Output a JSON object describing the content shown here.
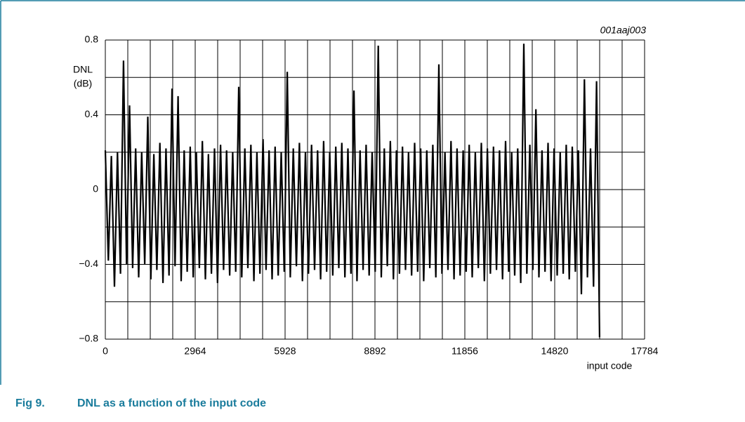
{
  "chart_data": {
    "type": "line",
    "annotation": "001aaj003",
    "ylabel": [
      "DNL",
      "(dB)"
    ],
    "xlabel": "input code",
    "figure_number": "Fig 9.",
    "title": "DNL as a function of the input code",
    "xlim": [
      0,
      17784
    ],
    "xticks": [
      0,
      2964,
      5928,
      8892,
      11856,
      14820,
      17784
    ],
    "xticks_minor": [
      741,
      1482,
      2223,
      3705,
      4446,
      5187,
      6669,
      7410,
      8151,
      9633,
      10374,
      11115,
      12597,
      13338,
      14079,
      15561,
      16302,
      17043
    ],
    "ylim": [
      -0.8,
      0.8
    ],
    "yticks": [
      {
        "value": -0.8,
        "label": "−0.8"
      },
      {
        "value": -0.4,
        "label": "−0.4"
      },
      0,
      0.4,
      0.8
    ],
    "yticks_minor": [
      -0.6,
      -0.2,
      0.2,
      0.6
    ],
    "grid": true,
    "series": [
      {
        "name": "DNL",
        "color": "#000000",
        "x": [
          0,
          100,
          200,
          300,
          400,
          500,
          600,
          700,
          800,
          900,
          1000,
          1100,
          1200,
          1300,
          1400,
          1500,
          1600,
          1700,
          1800,
          1900,
          2000,
          2100,
          2200,
          2300,
          2400,
          2500,
          2600,
          2700,
          2800,
          2900,
          3000,
          3100,
          3200,
          3300,
          3400,
          3500,
          3600,
          3700,
          3800,
          3900,
          4000,
          4100,
          4200,
          4300,
          4400,
          4500,
          4600,
          4700,
          4800,
          4900,
          5000,
          5100,
          5200,
          5300,
          5400,
          5500,
          5600,
          5700,
          5800,
          5900,
          6000,
          6100,
          6200,
          6300,
          6400,
          6500,
          6600,
          6700,
          6800,
          6900,
          7000,
          7100,
          7200,
          7300,
          7400,
          7500,
          7600,
          7700,
          7800,
          7900,
          8000,
          8100,
          8200,
          8300,
          8400,
          8500,
          8600,
          8700,
          8800,
          8900,
          9000,
          9100,
          9200,
          9300,
          9400,
          9500,
          9600,
          9700,
          9800,
          9900,
          10000,
          10100,
          10200,
          10300,
          10400,
          10500,
          10600,
          10700,
          10800,
          10900,
          11000,
          11100,
          11200,
          11300,
          11400,
          11500,
          11600,
          11700,
          11800,
          11900,
          12000,
          12100,
          12200,
          12300,
          12400,
          12500,
          12600,
          12700,
          12800,
          12900,
          13000,
          13100,
          13200,
          13300,
          13400,
          13500,
          13600,
          13700,
          13800,
          13900,
          14000,
          14100,
          14200,
          14300,
          14400,
          14500,
          14600,
          14700,
          14800,
          14900,
          15000,
          15100,
          15200,
          15300,
          15400,
          15500,
          15600,
          15700,
          15800,
          15900,
          16000,
          16100,
          16200,
          16300
        ],
        "values": [
          0.21,
          -0.38,
          0.18,
          -0.52,
          0.2,
          -0.45,
          0.69,
          -0.4,
          0.45,
          -0.42,
          0.22,
          -0.47,
          0.2,
          -0.4,
          0.39,
          -0.48,
          0.19,
          -0.43,
          0.25,
          -0.5,
          0.22,
          -0.46,
          0.54,
          -0.41,
          0.5,
          -0.49,
          0.21,
          -0.44,
          0.23,
          -0.47,
          0.2,
          -0.42,
          0.26,
          -0.48,
          0.19,
          -0.45,
          0.22,
          -0.5,
          0.24,
          -0.43,
          0.21,
          -0.46,
          0.2,
          -0.44,
          0.55,
          -0.47,
          0.22,
          -0.42,
          0.24,
          -0.49,
          0.2,
          -0.45,
          0.27,
          -0.43,
          0.21,
          -0.48,
          0.23,
          -0.46,
          0.2,
          -0.44,
          0.63,
          -0.47,
          0.22,
          -0.41,
          0.25,
          -0.49,
          0.2,
          -0.45,
          0.24,
          -0.43,
          0.21,
          -0.48,
          0.26,
          -0.44,
          0.2,
          -0.46,
          0.23,
          -0.42,
          0.25,
          -0.47,
          0.22,
          -0.45,
          0.53,
          -0.49,
          0.21,
          -0.43,
          0.24,
          -0.46,
          0.2,
          -0.44,
          0.77,
          -0.47,
          0.22,
          -0.41,
          0.26,
          -0.48,
          0.21,
          -0.45,
          0.23,
          -0.43,
          0.2,
          -0.46,
          0.25,
          -0.44,
          0.22,
          -0.49,
          0.21,
          -0.42,
          0.24,
          -0.47,
          0.67,
          -0.45,
          0.2,
          -0.43,
          0.26,
          -0.48,
          0.22,
          -0.46,
          0.21,
          -0.44,
          0.24,
          -0.47,
          0.2,
          -0.42,
          0.25,
          -0.49,
          0.22,
          -0.45,
          0.23,
          -0.43,
          0.21,
          -0.48,
          0.26,
          -0.44,
          0.2,
          -0.46,
          0.22,
          -0.5,
          0.78,
          -0.45,
          0.24,
          -0.43,
          0.43,
          -0.47,
          0.21,
          -0.44,
          0.25,
          -0.49,
          0.22,
          -0.46,
          0.2,
          -0.45,
          0.24,
          -0.48,
          0.23,
          -0.44,
          0.21,
          -0.56,
          0.59,
          -0.47,
          0.22,
          -0.52,
          0.58,
          -0.79
        ]
      }
    ]
  }
}
